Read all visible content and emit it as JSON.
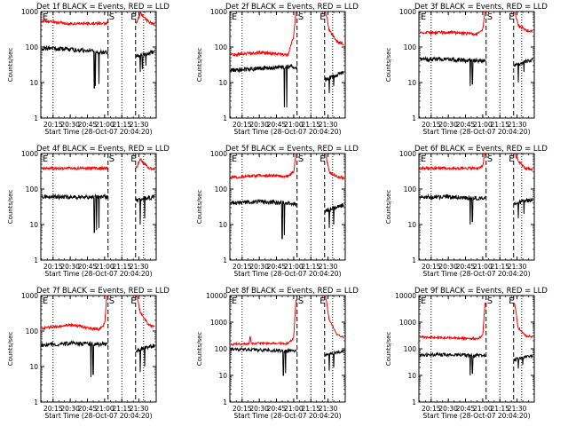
{
  "colors": {
    "background": "#ffffff",
    "axis": "#000000",
    "events": "#000000",
    "lld": "#ff0000"
  },
  "chart_data": [
    {
      "type": "line",
      "title": "Det 1f BLACK = Events, RED = LLD",
      "ylabel": "Counts/sec",
      "xlabel": "Start Time (28-Oct-07 20:04:20)",
      "yscale": "log",
      "ylim": [
        1,
        1000
      ],
      "xlim": [
        "20:04:20",
        "21:45"
      ],
      "x_ticks": [
        "20:15",
        "20:30",
        "20:45",
        "21:00",
        "21:15",
        "21:30"
      ],
      "y_ticks": [
        "1",
        "10",
        "100",
        "1000"
      ],
      "annotations": [
        {
          "text": "E",
          "x": "20:05"
        },
        {
          "text": "S",
          "x": "21:03"
        },
        {
          "text": "E",
          "x": "21:22"
        }
      ],
      "dotted_lines": [
        "20:15",
        "21:15",
        "21:34"
      ],
      "dashed_lines": [
        "21:03",
        "21:27"
      ],
      "gaps": [
        [
          "21:03",
          "21:27"
        ]
      ],
      "grid": false,
      "legend": "none",
      "series": [
        {
          "color": "#ff0000",
          "x": [
            "20:05",
            "20:30",
            "21:02",
            "21:28",
            "21:31",
            "21:38",
            "21:44"
          ],
          "values": [
            550,
            450,
            470,
            480,
            900,
            520,
            420
          ]
        },
        {
          "color": "#000000",
          "x": [
            "20:05",
            "20:30",
            "21:02",
            "21:28",
            "21:44"
          ],
          "values": [
            95,
            85,
            70,
            55,
            75
          ],
          "dips": [
            {
              "x": "20:51",
              "y": 7
            },
            {
              "x": "20:52",
              "y": 8
            },
            {
              "x": "20:55",
              "y": 9
            },
            {
              "x": "21:31",
              "y": 20
            },
            {
              "x": "21:33",
              "y": 25
            },
            {
              "x": "21:36",
              "y": 30
            }
          ]
        }
      ]
    },
    {
      "type": "line",
      "title": "Det 2f BLACK = Events, RED = LLD",
      "ylabel": "Counts/sec",
      "xlabel": "Start Time (28-Oct-07 20:04:20)",
      "yscale": "log",
      "ylim": [
        1,
        1000
      ],
      "xlim": [
        "20:04:20",
        "21:45"
      ],
      "x_ticks": [
        "20:15",
        "20:30",
        "20:45",
        "21:00",
        "21:15",
        "21:30"
      ],
      "y_ticks": [
        "1",
        "10",
        "100",
        "1000"
      ],
      "annotations": [
        {
          "text": "E",
          "x": "20:05"
        },
        {
          "text": "S",
          "x": "21:03"
        },
        {
          "text": "E",
          "x": "21:22"
        }
      ],
      "dotted_lines": [
        "20:15",
        "21:15",
        "21:34"
      ],
      "dashed_lines": [
        "21:03",
        "21:27"
      ],
      "gaps": [
        [
          "21:03",
          "21:27"
        ]
      ],
      "grid": false,
      "legend": "none",
      "series": [
        {
          "color": "#ff0000",
          "x": [
            "20:05",
            "20:30",
            "20:55",
            "21:00",
            "21:02",
            "21:28",
            "21:31",
            "21:38",
            "21:44"
          ],
          "values": [
            60,
            70,
            60,
            200,
            1000,
            1000,
            300,
            140,
            120
          ]
        },
        {
          "color": "#000000",
          "x": [
            "20:05",
            "20:30",
            "21:02",
            "21:28",
            "21:44"
          ],
          "values": [
            22,
            25,
            28,
            12,
            20
          ],
          "dips": [
            {
              "x": "20:52",
              "y": 2
            },
            {
              "x": "20:54",
              "y": 2
            },
            {
              "x": "21:31",
              "y": 5
            },
            {
              "x": "21:35",
              "y": 8
            }
          ]
        }
      ]
    },
    {
      "type": "line",
      "title": "Det 3f BLACK = Events, RED = LLD",
      "ylabel": "Counts/sec",
      "xlabel": "Start Time (28-Oct-07 20:04:20)",
      "yscale": "log",
      "ylim": [
        1,
        1000
      ],
      "xlim": [
        "20:04:20",
        "21:45"
      ],
      "x_ticks": [
        "20:15",
        "20:30",
        "20:45",
        "21:00",
        "21:15",
        "21:30"
      ],
      "y_ticks": [
        "1",
        "10",
        "100",
        "1000"
      ],
      "annotations": [
        {
          "text": "E",
          "x": "20:05"
        },
        {
          "text": "S",
          "x": "21:03"
        },
        {
          "text": "E",
          "x": "21:22"
        }
      ],
      "dotted_lines": [
        "20:15",
        "21:15",
        "21:34"
      ],
      "dashed_lines": [
        "21:03",
        "21:27"
      ],
      "gaps": [
        [
          "21:03",
          "21:27"
        ]
      ],
      "grid": false,
      "legend": "none",
      "series": [
        {
          "color": "#ff0000",
          "x": [
            "20:05",
            "20:30",
            "20:55",
            "21:00",
            "21:02",
            "21:28",
            "21:31",
            "21:38",
            "21:44"
          ],
          "values": [
            250,
            260,
            230,
            300,
            1000,
            1000,
            400,
            300,
            280
          ]
        },
        {
          "color": "#000000",
          "x": [
            "20:05",
            "20:30",
            "21:02",
            "21:28",
            "21:44"
          ],
          "values": [
            45,
            45,
            40,
            30,
            45
          ],
          "dips": [
            {
              "x": "20:49",
              "y": 8
            },
            {
              "x": "20:51",
              "y": 9
            },
            {
              "x": "21:31",
              "y": 10
            },
            {
              "x": "21:36",
              "y": 20
            }
          ]
        }
      ]
    },
    {
      "type": "line",
      "title": "Det 4f BLACK = Events, RED = LLD",
      "ylabel": "Counts/sec",
      "xlabel": "Start Time (28-Oct-07 20:04:20)",
      "yscale": "log",
      "ylim": [
        1,
        1000
      ],
      "xlim": [
        "20:04:20",
        "21:45"
      ],
      "x_ticks": [
        "20:15",
        "20:30",
        "20:45",
        "21:00",
        "21:15",
        "21:30"
      ],
      "y_ticks": [
        "1",
        "10",
        "100",
        "1000"
      ],
      "annotations": [
        {
          "text": "E",
          "x": "20:05"
        },
        {
          "text": "S",
          "x": "21:03"
        },
        {
          "text": "E",
          "x": "21:22"
        }
      ],
      "dotted_lines": [
        "20:15",
        "21:15",
        "21:34"
      ],
      "dashed_lines": [
        "21:03",
        "21:27"
      ],
      "gaps": [
        [
          "21:03",
          "21:27"
        ]
      ],
      "grid": false,
      "legend": "none",
      "series": [
        {
          "color": "#ff0000",
          "x": [
            "20:05",
            "20:30",
            "21:02",
            "21:28",
            "21:31",
            "21:38",
            "21:44"
          ],
          "values": [
            380,
            380,
            390,
            400,
            700,
            400,
            350
          ]
        },
        {
          "color": "#000000",
          "x": [
            "20:05",
            "20:30",
            "21:02",
            "21:28",
            "21:44"
          ],
          "values": [
            60,
            60,
            60,
            50,
            60
          ],
          "dips": [
            {
              "x": "20:51",
              "y": 6
            },
            {
              "x": "20:53",
              "y": 7
            },
            {
              "x": "20:55",
              "y": 8
            },
            {
              "x": "21:31",
              "y": 10
            },
            {
              "x": "21:35",
              "y": 15
            }
          ]
        }
      ]
    },
    {
      "type": "line",
      "title": "Det 5f BLACK = Events, RED = LLD",
      "ylabel": "Counts/sec",
      "xlabel": "Start Time (28-Oct-07 20:04:20)",
      "yscale": "log",
      "ylim": [
        1,
        1000
      ],
      "xlim": [
        "20:04:20",
        "21:45"
      ],
      "x_ticks": [
        "20:15",
        "20:30",
        "20:45",
        "21:00",
        "21:15",
        "21:30"
      ],
      "y_ticks": [
        "1",
        "10",
        "100",
        "1000"
      ],
      "annotations": [
        {
          "text": "E",
          "x": "20:05"
        },
        {
          "text": "S",
          "x": "21:03"
        },
        {
          "text": "E",
          "x": "21:22"
        }
      ],
      "dotted_lines": [
        "20:15",
        "21:15",
        "21:34"
      ],
      "dashed_lines": [
        "21:03",
        "21:27"
      ],
      "gaps": [
        [
          "21:03",
          "21:27"
        ]
      ],
      "grid": false,
      "legend": "none",
      "series": [
        {
          "color": "#ff0000",
          "x": [
            "20:05",
            "20:30",
            "20:55",
            "21:00",
            "21:02",
            "21:28",
            "21:31",
            "21:38",
            "21:44"
          ],
          "values": [
            210,
            240,
            230,
            300,
            1000,
            1000,
            300,
            220,
            210
          ]
        },
        {
          "color": "#000000",
          "x": [
            "20:05",
            "20:30",
            "21:02",
            "21:28",
            "21:44"
          ],
          "values": [
            40,
            45,
            38,
            25,
            35
          ],
          "dips": [
            {
              "x": "20:50",
              "y": 4
            },
            {
              "x": "20:52",
              "y": 5
            },
            {
              "x": "21:31",
              "y": 8
            },
            {
              "x": "21:35",
              "y": 10
            }
          ]
        }
      ]
    },
    {
      "type": "line",
      "title": "Det 6f BLACK = Events, RED = LLD",
      "ylabel": "Counts/sec",
      "xlabel": "Start Time (28-Oct-07 20:04:20)",
      "yscale": "log",
      "ylim": [
        1,
        1000
      ],
      "xlim": [
        "20:04:20",
        "21:45"
      ],
      "x_ticks": [
        "20:15",
        "20:30",
        "20:45",
        "21:00",
        "21:15",
        "21:30"
      ],
      "y_ticks": [
        "1",
        "10",
        "100",
        "1000"
      ],
      "annotations": [
        {
          "text": "E",
          "x": "20:05"
        },
        {
          "text": "S",
          "x": "21:03"
        },
        {
          "text": "E",
          "x": "21:22"
        }
      ],
      "dotted_lines": [
        "20:15",
        "21:15",
        "21:34"
      ],
      "dashed_lines": [
        "21:03",
        "21:27"
      ],
      "gaps": [
        [
          "21:03",
          "21:27"
        ]
      ],
      "grid": false,
      "legend": "none",
      "series": [
        {
          "color": "#ff0000",
          "x": [
            "20:05",
            "20:30",
            "20:55",
            "21:00",
            "21:02",
            "21:28",
            "21:31",
            "21:38",
            "21:44"
          ],
          "values": [
            380,
            390,
            380,
            450,
            1000,
            1000,
            600,
            380,
            350
          ]
        },
        {
          "color": "#000000",
          "x": [
            "20:05",
            "20:30",
            "21:02",
            "21:28",
            "21:44"
          ],
          "values": [
            60,
            60,
            55,
            40,
            50
          ],
          "dips": [
            {
              "x": "20:49",
              "y": 10
            },
            {
              "x": "20:51",
              "y": 12
            },
            {
              "x": "21:31",
              "y": 15
            },
            {
              "x": "21:36",
              "y": 20
            }
          ]
        }
      ]
    },
    {
      "type": "line",
      "title": "Det 7f BLACK = Events, RED = LLD",
      "ylabel": "Counts/sec",
      "xlabel": "Start Time (28-Oct-07 20:04:20)",
      "yscale": "log",
      "ylim": [
        1,
        1000
      ],
      "xlim": [
        "20:04:20",
        "21:45"
      ],
      "x_ticks": [
        "20:15",
        "20:30",
        "20:45",
        "21:00",
        "21:15",
        "21:30"
      ],
      "y_ticks": [
        "1",
        "10",
        "100",
        "1000"
      ],
      "annotations": [
        {
          "text": "E",
          "x": "20:05"
        },
        {
          "text": "S",
          "x": "21:03"
        },
        {
          "text": "E",
          "x": "21:22"
        }
      ],
      "dotted_lines": [
        "20:15",
        "21:15",
        "21:34"
      ],
      "dashed_lines": [
        "21:03",
        "21:27"
      ],
      "gaps": [
        [
          "21:03",
          "21:27"
        ]
      ],
      "grid": false,
      "legend": "none",
      "series": [
        {
          "color": "#ff0000",
          "x": [
            "20:05",
            "20:30",
            "20:55",
            "21:00",
            "21:02",
            "21:28",
            "21:31",
            "21:38",
            "21:44"
          ],
          "values": [
            120,
            150,
            110,
            160,
            1000,
            1000,
            350,
            150,
            130
          ]
        },
        {
          "color": "#000000",
          "x": [
            "20:05",
            "20:30",
            "21:02",
            "21:28",
            "21:44"
          ],
          "values": [
            40,
            45,
            42,
            28,
            40
          ],
          "dips": [
            {
              "x": "20:48",
              "y": 5
            },
            {
              "x": "20:50",
              "y": 6
            },
            {
              "x": "21:31",
              "y": 7
            },
            {
              "x": "21:35",
              "y": 10
            }
          ]
        }
      ]
    },
    {
      "type": "line",
      "title": "Det 8f BLACK = Events, RED = LLD",
      "ylabel": "Counts/sec",
      "xlabel": "Start Time (28-Oct-07 20:04:20)",
      "yscale": "log",
      "ylim": [
        1,
        10000
      ],
      "xlim": [
        "20:04:20",
        "21:45"
      ],
      "x_ticks": [
        "20:15",
        "20:30",
        "20:45",
        "21:00",
        "21:15",
        "21:30"
      ],
      "y_ticks": [
        "1",
        "10",
        "100",
        "1000",
        "10000"
      ],
      "annotations": [
        {
          "text": "E",
          "x": "20:05"
        },
        {
          "text": "S",
          "x": "21:03"
        },
        {
          "text": "E",
          "x": "21:22"
        }
      ],
      "dotted_lines": [
        "20:15",
        "21:15",
        "21:34"
      ],
      "dashed_lines": [
        "21:03",
        "21:27"
      ],
      "gaps": [
        [
          "21:03",
          "21:27"
        ]
      ],
      "grid": false,
      "legend": "none",
      "series": [
        {
          "color": "#ff0000",
          "x": [
            "20:05",
            "20:21",
            "20:22",
            "20:23",
            "20:30",
            "20:55",
            "21:00",
            "21:02",
            "21:28",
            "21:31",
            "21:38",
            "21:44"
          ],
          "values": [
            150,
            150,
            300,
            160,
            160,
            160,
            250,
            7000,
            9000,
            1200,
            350,
            250
          ]
        },
        {
          "color": "#000000",
          "x": [
            "20:05",
            "20:30",
            "21:02",
            "21:28",
            "21:44"
          ],
          "values": [
            100,
            90,
            80,
            60,
            80
          ],
          "dips": [
            {
              "x": "20:51",
              "y": 10
            },
            {
              "x": "20:53",
              "y": 12
            },
            {
              "x": "21:31",
              "y": 15
            },
            {
              "x": "21:35",
              "y": 20
            }
          ]
        }
      ]
    },
    {
      "type": "line",
      "title": "Det 9f BLACK = Events, RED = LLD",
      "ylabel": "Counts/sec",
      "xlabel": "Start Time (28-Oct-07 20:04:20)",
      "yscale": "log",
      "ylim": [
        1,
        10000
      ],
      "xlim": [
        "20:04:20",
        "21:45"
      ],
      "x_ticks": [
        "20:15",
        "20:30",
        "20:45",
        "21:00",
        "21:15",
        "21:30"
      ],
      "y_ticks": [
        "1",
        "10",
        "100",
        "1000",
        "10000"
      ],
      "annotations": [
        {
          "text": "E",
          "x": "20:05"
        },
        {
          "text": "S",
          "x": "21:03"
        },
        {
          "text": "E",
          "x": "21:22"
        }
      ],
      "dotted_lines": [
        "20:15",
        "21:15",
        "21:34"
      ],
      "dashed_lines": [
        "21:03",
        "21:27"
      ],
      "gaps": [
        [
          "21:03",
          "21:27"
        ]
      ],
      "grid": false,
      "legend": "none",
      "series": [
        {
          "color": "#ff0000",
          "x": [
            "20:05",
            "20:30",
            "20:55",
            "21:00",
            "21:02",
            "21:28",
            "21:31",
            "21:38",
            "21:44"
          ],
          "values": [
            270,
            260,
            240,
            300,
            5000,
            5000,
            600,
            300,
            280
          ]
        },
        {
          "color": "#000000",
          "x": [
            "20:05",
            "20:30",
            "21:02",
            "21:28",
            "21:44"
          ],
          "values": [
            60,
            60,
            55,
            40,
            55
          ],
          "dips": [
            {
              "x": "20:49",
              "y": 10
            },
            {
              "x": "20:51",
              "y": 12
            },
            {
              "x": "21:31",
              "y": 18
            },
            {
              "x": "21:35",
              "y": 25
            }
          ]
        }
      ]
    }
  ]
}
